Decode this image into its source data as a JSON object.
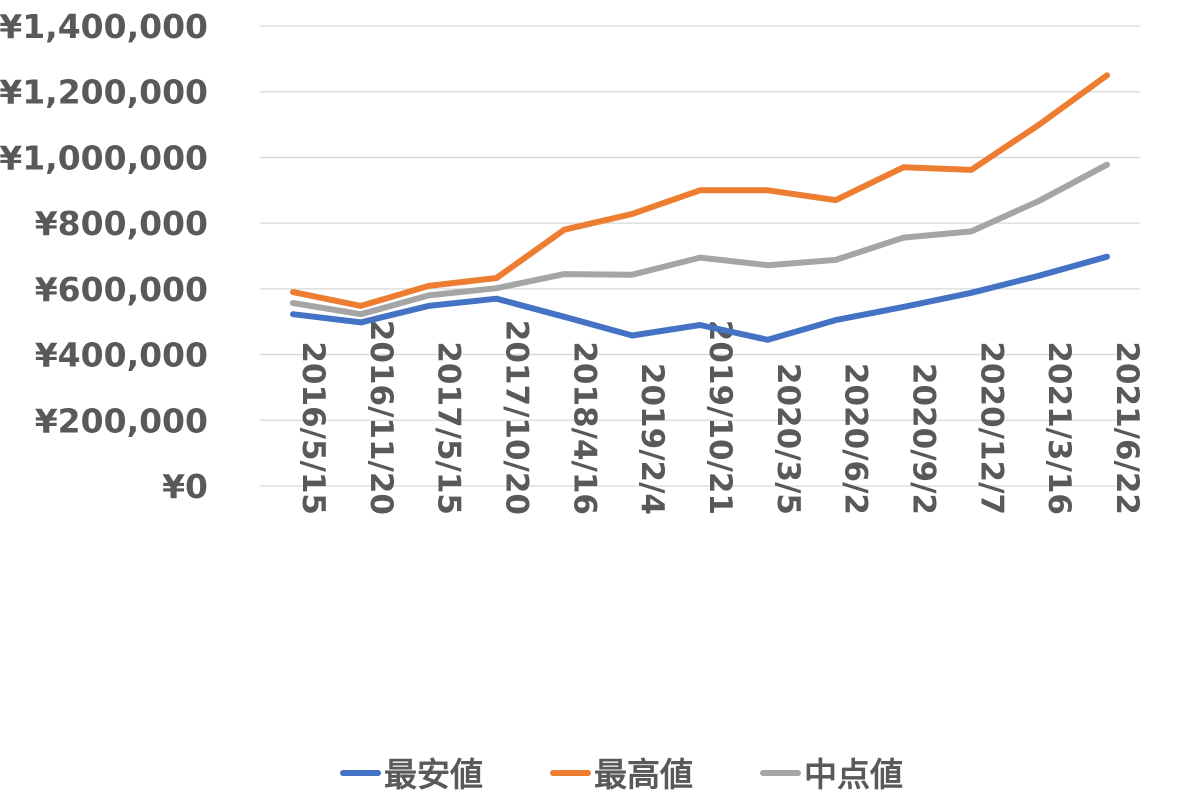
{
  "chart_data": {
    "type": "line",
    "categories": [
      "2016/5/15",
      "2016/11/20",
      "2017/5/15",
      "2017/10/20",
      "2018/4/16",
      "2019/2/4",
      "2019/10/21",
      "2020/3/5",
      "2020/6/2",
      "2020/9/2",
      "2020/12/7",
      "2021/3/16",
      "2021/6/22"
    ],
    "series": [
      {
        "name": "最安値",
        "color": "#4472C4",
        "values": [
          523000,
          498000,
          548000,
          570000,
          515000,
          458000,
          490000,
          445000,
          505000,
          545000,
          588000,
          640000,
          698000
        ]
      },
      {
        "name": "最高値",
        "color": "#ED7D31",
        "values": [
          590000,
          548000,
          609000,
          633000,
          780000,
          828000,
          900000,
          900000,
          870000,
          970000,
          962000,
          1100000,
          1250000
        ]
      },
      {
        "name": "中点値",
        "color": "#A5A5A5",
        "values": [
          557000,
          523000,
          580000,
          602000,
          645000,
          643000,
          695000,
          672000,
          688000,
          756000,
          775000,
          868000,
          978000
        ]
      }
    ],
    "ylim": [
      0,
      1400000
    ],
    "yticks": [
      "¥0",
      "¥200,000",
      "¥400,000",
      "¥600,000",
      "¥800,000",
      "¥1,000,000",
      "¥1,200,000",
      "¥1,400,000"
    ],
    "grid": true,
    "legend_position": "bottom"
  }
}
